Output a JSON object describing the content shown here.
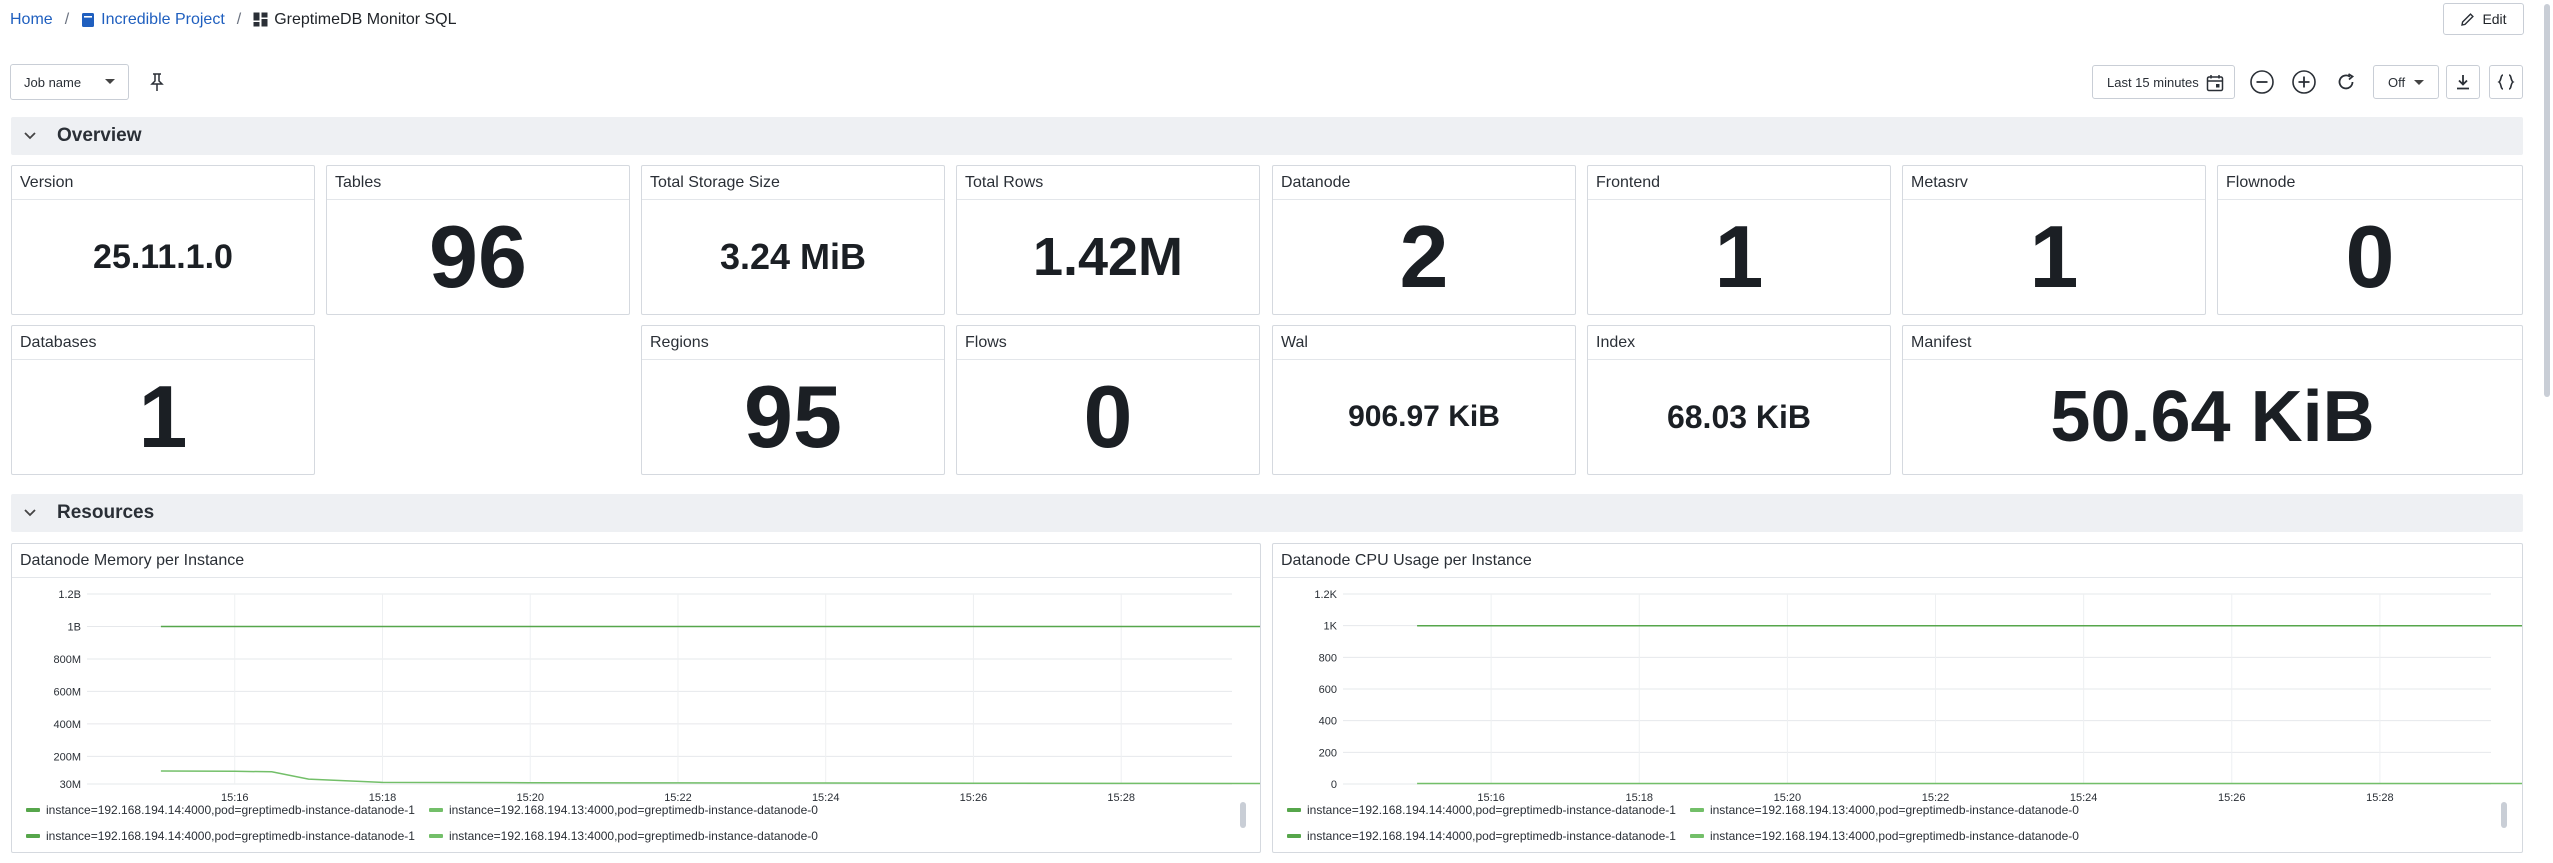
{
  "breadcrumb": {
    "home": "Home",
    "project": "Incredible Project",
    "dashboard": "GreptimeDB Monitor SQL"
  },
  "header": {
    "edit_label": "Edit"
  },
  "controls": {
    "variable_select": "Job name",
    "time_range": "Last 15 minutes",
    "refresh": "Off"
  },
  "sections": {
    "overview": "Overview",
    "resources": "Resources"
  },
  "stats": {
    "version": {
      "title": "Version",
      "value": "25.11.1.0"
    },
    "tables": {
      "title": "Tables",
      "value": "96"
    },
    "total_storage": {
      "title": "Total Storage Size",
      "value": "3.24 MiB"
    },
    "total_rows": {
      "title": "Total Rows",
      "value": "1.42M"
    },
    "datanode": {
      "title": "Datanode",
      "value": "2"
    },
    "frontend": {
      "title": "Frontend",
      "value": "1"
    },
    "metasrv": {
      "title": "Metasrv",
      "value": "1"
    },
    "flownode": {
      "title": "Flownode",
      "value": "0"
    },
    "databases": {
      "title": "Databases",
      "value": "1"
    },
    "regions": {
      "title": "Regions",
      "value": "95"
    },
    "flows": {
      "title": "Flows",
      "value": "0"
    },
    "wal": {
      "title": "Wal",
      "value": "906.97 KiB"
    },
    "index": {
      "title": "Index",
      "value": "68.03 KiB"
    },
    "manifest": {
      "title": "Manifest",
      "value": "50.64 KiB"
    }
  },
  "colors": {
    "series_a": "#56a64b",
    "series_b": "#73bf69",
    "accent": "#1f5fbf"
  },
  "chart_data": [
    {
      "type": "line",
      "title": "Datanode Memory per Instance",
      "y_ticks": [
        "1.2B",
        "1B",
        "800M",
        "600M",
        "400M",
        "200M",
        "30M"
      ],
      "y_tick_values": [
        1200000000,
        1000000000,
        800000000,
        600000000,
        400000000,
        200000000,
        30000000
      ],
      "x_ticks": [
        "15:16",
        "15:18",
        "15:20",
        "15:22",
        "15:24",
        "15:26",
        "15:28"
      ],
      "x": [
        "15:15",
        "15:16",
        "15:16:30",
        "15:17",
        "15:18",
        "15:20",
        "15:22",
        "15:24",
        "15:26",
        "15:28",
        "15:30"
      ],
      "series": [
        {
          "name": "instance=192.168.194.14:4000,pod=greptimedb-instance-datanode-1",
          "values": [
            1000000000,
            1000000000,
            1000000000,
            1000000000,
            1000000000,
            1000000000,
            1000000000,
            1000000000,
            1000000000,
            1000000000,
            1000000000
          ]
        },
        {
          "name": "instance=192.168.194.13:4000,pod=greptimedb-instance-datanode-0",
          "values": [
            110000000,
            108000000,
            105000000,
            60000000,
            40000000,
            38000000,
            37000000,
            36000000,
            35000000,
            34000000,
            33000000
          ]
        }
      ],
      "ylim": [
        30000000,
        1200000000
      ],
      "legend_placement": "bottom"
    },
    {
      "type": "line",
      "title": "Datanode CPU Usage per Instance",
      "y_ticks": [
        "1.2K",
        "1K",
        "800",
        "600",
        "400",
        "200",
        "0"
      ],
      "y_tick_values": [
        1200,
        1000,
        800,
        600,
        400,
        200,
        0
      ],
      "x_ticks": [
        "15:16",
        "15:18",
        "15:20",
        "15:22",
        "15:24",
        "15:26",
        "15:28"
      ],
      "x": [
        "15:15",
        "15:16",
        "15:18",
        "15:20",
        "15:22",
        "15:24",
        "15:26",
        "15:28",
        "15:30"
      ],
      "series": [
        {
          "name": "instance=192.168.194.14:4000,pod=greptimedb-instance-datanode-1",
          "values": [
            1000,
            1000,
            1000,
            1000,
            1000,
            1000,
            1000,
            1000,
            1000
          ]
        },
        {
          "name": "instance=192.168.194.13:4000,pod=greptimedb-instance-datanode-0",
          "values": [
            3,
            3,
            3,
            3,
            3,
            3,
            3,
            3,
            3
          ]
        }
      ],
      "ylim": [
        0,
        1200
      ],
      "legend_placement": "bottom"
    }
  ]
}
